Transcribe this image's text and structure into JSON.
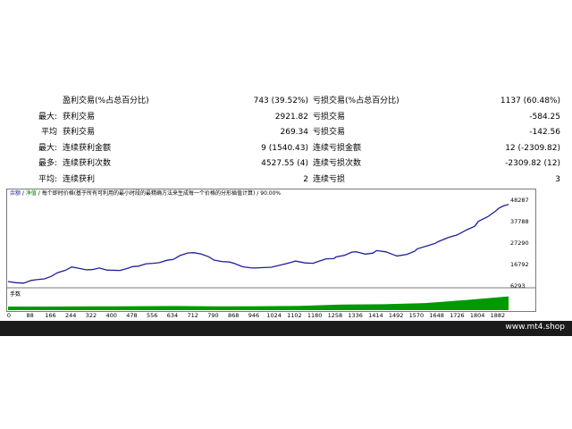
{
  "stats": {
    "rows": [
      {
        "label1": "",
        "label2": "盈利交易(%占总百分比)",
        "value1": "743 (39.52%)",
        "label3": "亏损交易(%占总百分比)",
        "value2": "1137 (60.48%)"
      },
      {
        "label1": "最大:",
        "label2": "获利交易",
        "value1": "2921.82",
        "label3": "亏损交易",
        "value2": "-584.25"
      },
      {
        "label1": "平均",
        "label2": "获利交易",
        "value1": "269.34",
        "label3": "亏损交易",
        "value2": "-142.56"
      },
      {
        "label1": "最大:",
        "label2": "连续获利金额",
        "value1": "9 (1540.43)",
        "label3": "连续亏损金额",
        "value2": "12 (-2309.82)"
      },
      {
        "label1": "最多:",
        "label2": "连续获利次数",
        "value1": "4527.55 (4)",
        "label3": "连续亏损次数",
        "value2": "-2309.82 (12)"
      },
      {
        "label1": "平均:",
        "label2": "连续获利",
        "value1": "2",
        "label3": "连续亏损",
        "value2": "3"
      }
    ]
  },
  "chart": {
    "legend": {
      "balance": "余额",
      "sep1": " / ",
      "equity": "净值",
      "sep2": " / ",
      "desc": "每个即时价格(基于所有可利用的最小时段的最精确方法来生成每一个价格的分形插值计算)",
      "sep3": " / ",
      "quality": "90.00%"
    },
    "volume_label": "手数",
    "footer": "www.mt4.shop"
  },
  "chart_data": {
    "type": "line",
    "x_ticks": [
      "0",
      "88",
      "166",
      "244",
      "322",
      "400",
      "478",
      "556",
      "634",
      "712",
      "790",
      "868",
      "946",
      "1024",
      "1102",
      "1180",
      "1258",
      "1336",
      "1414",
      "1492",
      "1570",
      "1648",
      "1726",
      "1804",
      "1882"
    ],
    "y_ticks": [
      "48287",
      "37788",
      "27290",
      "16792",
      "6293"
    ],
    "ylim": [
      6293,
      48287
    ],
    "xlim": [
      0,
      1920
    ],
    "colors": {
      "balance": "#1f1f9b",
      "volume": "#009900"
    },
    "series": [
      {
        "x": [
          0,
          30,
          60,
          88,
          110,
          140,
          166,
          190,
          220,
          244,
          270,
          300,
          322,
          350,
          380,
          400,
          430,
          460,
          478,
          500,
          530,
          556,
          580,
          610,
          634,
          660,
          690,
          712,
          740,
          770,
          790,
          820,
          850,
          868,
          900,
          930,
          946,
          980,
          1010,
          1024,
          1060,
          1090,
          1102,
          1140,
          1170,
          1180,
          1220,
          1250,
          1258,
          1290,
          1320,
          1336,
          1370,
          1400,
          1414,
          1450,
          1480,
          1492,
          1530,
          1560,
          1570,
          1610,
          1640,
          1648,
          1690,
          1720,
          1726,
          1760,
          1790,
          1804,
          1840,
          1870,
          1882,
          1900,
          1920
        ],
        "y": [
          8500,
          7900,
          7700,
          9000,
          9400,
          9800,
          11000,
          12800,
          14000,
          15600,
          15000,
          14200,
          14300,
          15100,
          14100,
          14000,
          13900,
          15000,
          15800,
          16000,
          17200,
          17400,
          17700,
          18900,
          19300,
          21200,
          22500,
          22600,
          22000,
          20600,
          19000,
          18300,
          18000,
          17300,
          15700,
          15200,
          15100,
          15300,
          15500,
          15900,
          17000,
          18000,
          18500,
          17600,
          17400,
          17900,
          19600,
          19700,
          20500,
          21300,
          22900,
          23000,
          21900,
          22400,
          23600,
          23000,
          21500,
          21000,
          21800,
          23300,
          24500,
          26000,
          27200,
          27900,
          30100,
          31200,
          31500,
          33800,
          35500,
          37900,
          40200,
          42900,
          44300,
          45500,
          46200
        ]
      }
    ],
    "volume": {
      "x": [
        0,
        160,
        320,
        480,
        640,
        800,
        960,
        1120,
        1280,
        1440,
        1600,
        1760,
        1920
      ],
      "y": [
        0.18,
        0.18,
        0.19,
        0.2,
        0.21,
        0.19,
        0.2,
        0.22,
        0.28,
        0.3,
        0.36,
        0.52,
        0.7
      ]
    }
  }
}
